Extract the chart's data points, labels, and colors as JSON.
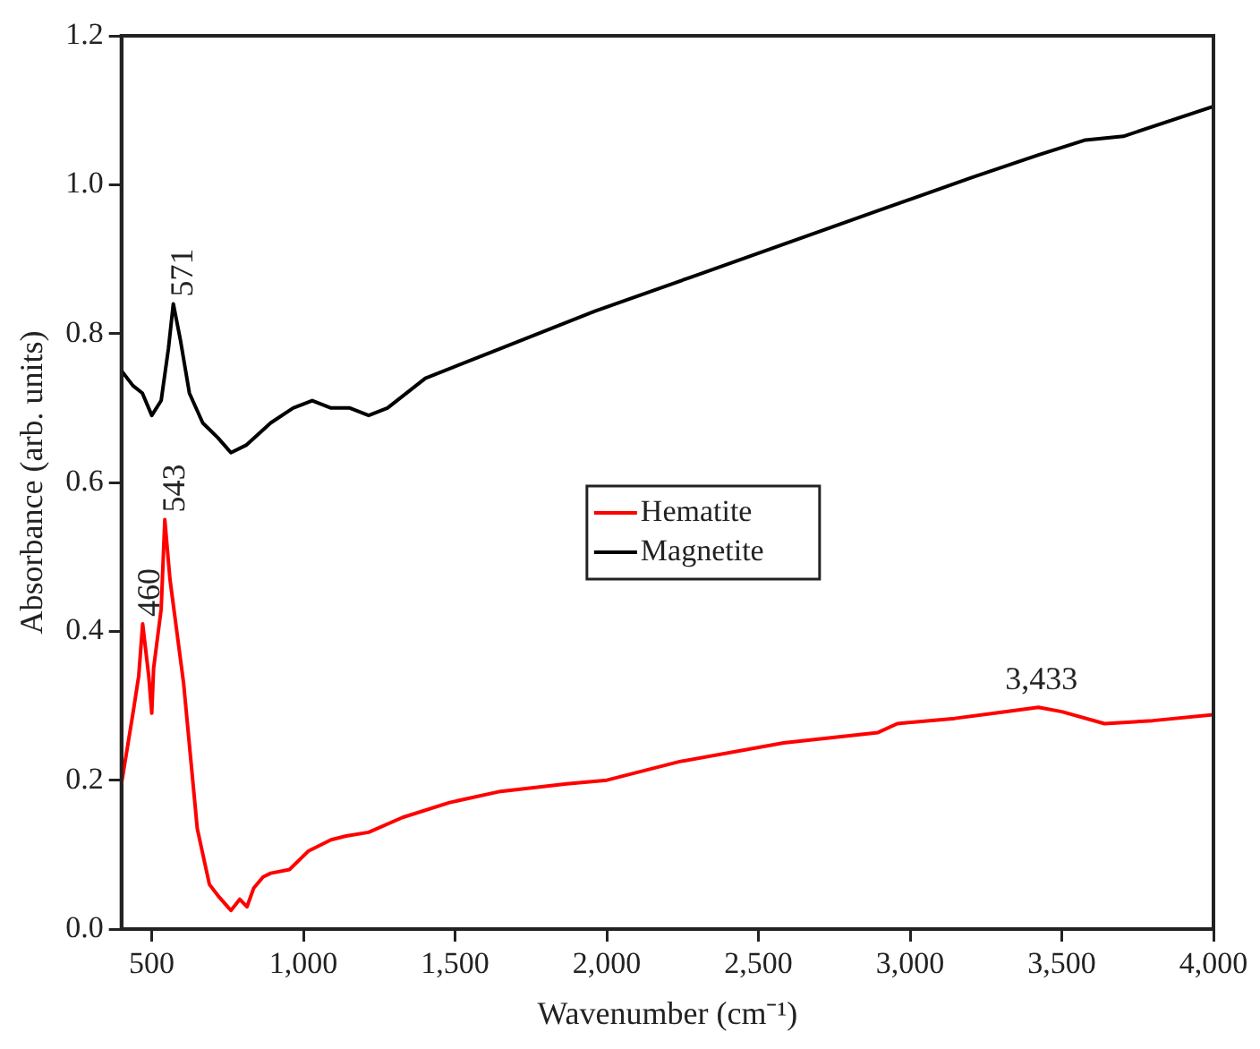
{
  "chart_data": {
    "type": "line",
    "xlabel": "Wavenumber (cm⁻¹)",
    "ylabel": "Absorbance (arb. units)",
    "xlim": [
      400,
      4000
    ],
    "xticks": [
      500,
      {
        "value": 1000,
        "label": "1,000"
      },
      {
        "value": 1500,
        "label": "1,500"
      },
      {
        "value": 2000,
        "label": "2,000"
      },
      {
        "value": 2500,
        "label": "2,500"
      },
      {
        "value": 3000,
        "label": "3,000"
      },
      {
        "value": 3500,
        "label": "3,500"
      },
      {
        "value": 4000,
        "label": "4,000"
      }
    ],
    "ylim": [
      0,
      1.2
    ],
    "yticks": [
      {
        "value": 0,
        "label": "0.0"
      },
      0.2,
      0.4,
      0.6,
      0.8,
      {
        "value": 1,
        "label": "1.0"
      },
      {
        "value": 1.2,
        "label": "1.2"
      }
    ],
    "grid": false,
    "legend": "center",
    "marker": "none",
    "line_style": "solid",
    "series": [
      {
        "name": "Hematite",
        "color": "#ff0000",
        "x": [
          400,
          438,
          457,
          470,
          490,
          500,
          506,
          531,
          543,
          560,
          605,
          650,
          690,
          718,
          761,
          790,
          814,
          836,
          867,
          892,
          954,
          1017,
          1091,
          1141,
          1215,
          1327,
          1482,
          1650,
          1868,
          2000,
          2240,
          2583,
          2894,
          2958,
          3147,
          3279,
          3423,
          3500,
          3641,
          3800,
          4000
        ],
        "values": [
          0.195,
          0.29,
          0.34,
          0.41,
          0.34,
          0.29,
          0.35,
          0.43,
          0.55,
          0.47,
          0.33,
          0.135,
          0.06,
          0.045,
          0.025,
          0.04,
          0.03,
          0.055,
          0.07,
          0.075,
          0.08,
          0.105,
          0.12,
          0.125,
          0.13,
          0.15,
          0.17,
          0.185,
          0.195,
          0.2,
          0.225,
          0.25,
          0.264,
          0.276,
          0.283,
          0.29,
          0.298,
          0.292,
          0.276,
          0.28,
          0.288
        ]
      },
      {
        "name": "Magnetite",
        "color": "#000000",
        "x": [
          400,
          438,
          469,
          500,
          531,
          555,
          571,
          595,
          624,
          668,
          718,
          761,
          811,
          892,
          966,
          1029,
          1091,
          1153,
          1215,
          1277,
          1402,
          1650,
          1961,
          2272,
          2583,
          2894,
          3205,
          3423,
          3578,
          3703,
          4000
        ],
        "values": [
          0.75,
          0.73,
          0.72,
          0.69,
          0.71,
          0.78,
          0.84,
          0.79,
          0.72,
          0.68,
          0.66,
          0.64,
          0.65,
          0.68,
          0.7,
          0.71,
          0.7,
          0.7,
          0.69,
          0.7,
          0.74,
          0.78,
          0.83,
          0.875,
          0.92,
          0.965,
          1.01,
          1.04,
          1.06,
          1.065,
          1.105
        ]
      }
    ],
    "annotations": [
      {
        "text": "571",
        "x": 571,
        "y": 0.84
      },
      {
        "text": "543",
        "x": 543,
        "y": 0.55
      },
      {
        "text": "460",
        "x": 460,
        "y": 0.41
      },
      {
        "text": "3,433",
        "x": 3433,
        "y": 0.298
      }
    ]
  }
}
